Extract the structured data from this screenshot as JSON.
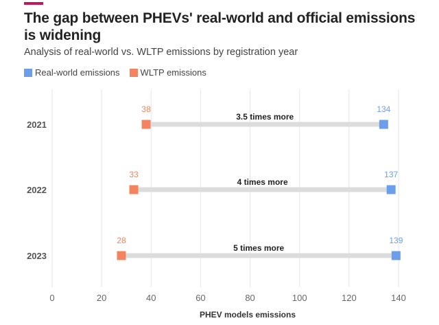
{
  "header": {
    "title": "The gap between PHEVs' real-world and official emissions is widening",
    "subtitle": "Analysis of real-world vs. WLTP emissions by registration year",
    "accent_color": "#c2185b"
  },
  "legend": {
    "items": [
      {
        "label": "Real-world emissions",
        "color": "#6d9eeb"
      },
      {
        "label": "WLTP emissions",
        "color": "#f4845f"
      }
    ]
  },
  "chart_data": {
    "type": "dumbbell",
    "title": "The gap between PHEVs' real-world and official emissions is widening",
    "subtitle": "Analysis of real-world vs. WLTP emissions by registration year",
    "xlabel": "PHEV models emissions",
    "ylabel": "",
    "xlim": [
      0,
      140
    ],
    "xticks": [
      0,
      20,
      40,
      60,
      80,
      100,
      120,
      140
    ],
    "grid": true,
    "legend_position": "top-left",
    "categories": [
      "2021",
      "2022",
      "2023"
    ],
    "series": [
      {
        "name": "WLTP emissions",
        "color": "#f4845f",
        "values": [
          38,
          33,
          28
        ]
      },
      {
        "name": "Real-world emissions",
        "color": "#6d9eeb",
        "values": [
          134,
          137,
          139
        ]
      }
    ],
    "annotations": [
      "3.5 times more",
      "4 times more",
      "5 times more"
    ]
  }
}
